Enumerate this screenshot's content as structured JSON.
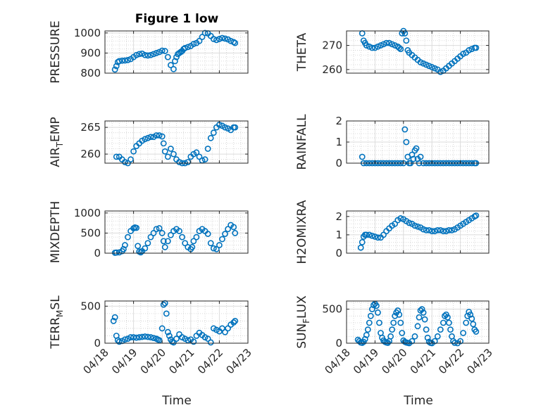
{
  "title": "Figure 1 low",
  "colors": {
    "marker": "#0072BD",
    "axis": "#262626",
    "grid": "#dcdcdc"
  },
  "xlabel": "Time",
  "x_ticks": [
    "04/18",
    "04/19",
    "04/20",
    "04/21",
    "04/22",
    "04/23"
  ],
  "chart_data": [
    {
      "type": "scatter",
      "ylabel": "PRESSURE",
      "yticks": [
        800,
        900,
        1000
      ],
      "ylim": [
        800,
        1010
      ],
      "xlim": [
        0,
        5
      ],
      "show_xticklabels": false,
      "x": [
        0.35,
        0.4,
        0.45,
        0.5,
        0.6,
        0.7,
        0.8,
        0.9,
        1.0,
        1.1,
        1.2,
        1.3,
        1.4,
        1.5,
        1.6,
        1.7,
        1.8,
        1.9,
        2.0,
        2.1,
        2.2,
        2.3,
        2.4,
        2.45,
        2.5,
        2.55,
        2.6,
        2.65,
        2.7,
        2.75,
        2.8,
        2.9,
        3.0,
        3.1,
        3.2,
        3.3,
        3.4,
        3.5,
        3.6,
        3.7,
        3.8,
        3.9,
        4.0,
        4.1,
        4.2,
        4.3,
        4.4,
        4.5,
        4.55
      ],
      "y": [
        818,
        835,
        855,
        860,
        862,
        863,
        865,
        870,
        880,
        890,
        895,
        897,
        890,
        888,
        890,
        895,
        900,
        905,
        912,
        910,
        880,
        840,
        820,
        860,
        880,
        895,
        900,
        905,
        910,
        920,
        925,
        930,
        935,
        945,
        950,
        960,
        980,
        1000,
        998,
        985,
        970,
        965,
        970,
        975,
        972,
        968,
        960,
        955,
        950
      ]
    },
    {
      "type": "scatter",
      "ylabel": "THETA",
      "yticks": [
        260,
        270
      ],
      "ylim": [
        258.5,
        276
      ],
      "xlim": [
        0,
        5
      ],
      "show_xticklabels": false,
      "x": [
        0.55,
        0.6,
        0.65,
        0.7,
        0.8,
        0.9,
        1.0,
        1.1,
        1.2,
        1.3,
        1.4,
        1.5,
        1.6,
        1.7,
        1.8,
        1.85,
        1.9,
        1.95,
        2.0,
        2.05,
        2.1,
        2.15,
        2.2,
        2.3,
        2.4,
        2.5,
        2.6,
        2.7,
        2.8,
        2.9,
        3.0,
        3.1,
        3.2,
        3.3,
        3.4,
        3.5,
        3.6,
        3.7,
        3.8,
        3.9,
        4.0,
        4.1,
        4.2,
        4.3,
        4.4,
        4.5,
        4.55
      ],
      "y": [
        275,
        272,
        271,
        270,
        269.5,
        269,
        269,
        269.5,
        270,
        270.5,
        271,
        271,
        270.5,
        270,
        269.5,
        269,
        268.5,
        275,
        276,
        275,
        272,
        268,
        267,
        266,
        265,
        264,
        263,
        262.5,
        262,
        261.5,
        261,
        260.5,
        260,
        259,
        259.5,
        260.5,
        261.5,
        262.5,
        263.5,
        264.5,
        265.5,
        266.5,
        267,
        268,
        268.5,
        269,
        269
      ]
    },
    {
      "type": "scatter",
      "ylabel": "AIR_TEMP",
      "yticks": [
        260,
        265
      ],
      "ylim": [
        258.3,
        266.2
      ],
      "xlim": [
        0,
        5
      ],
      "show_xticklabels": false,
      "x": [
        0.4,
        0.5,
        0.6,
        0.7,
        0.8,
        0.9,
        1.0,
        1.1,
        1.2,
        1.3,
        1.4,
        1.5,
        1.6,
        1.7,
        1.8,
        1.9,
        2.0,
        2.05,
        2.1,
        2.2,
        2.3,
        2.4,
        2.5,
        2.6,
        2.7,
        2.8,
        2.9,
        3.0,
        3.1,
        3.2,
        3.3,
        3.4,
        3.5,
        3.6,
        3.7,
        3.8,
        3.9,
        4.0,
        4.1,
        4.2,
        4.3,
        4.4,
        4.5,
        4.55
      ],
      "y": [
        259.5,
        259.5,
        259,
        258.5,
        258.3,
        259,
        260.5,
        261.5,
        262,
        262.5,
        262.8,
        263,
        263.2,
        263.2,
        263.5,
        263.5,
        263.3,
        262,
        260.5,
        259.5,
        261,
        260,
        259,
        258.5,
        258.3,
        258.3,
        258.5,
        259.5,
        260,
        260.3,
        259.5,
        258.8,
        259,
        261,
        263,
        264,
        265,
        265.5,
        265.3,
        265,
        264.8,
        264.5,
        265,
        265
      ]
    },
    {
      "type": "scatter",
      "ylabel": "RAINFALL",
      "yticks": [
        0,
        1,
        2
      ],
      "ylim": [
        0,
        2
      ],
      "xlim": [
        0,
        5
      ],
      "show_xticklabels": false,
      "x": [
        0.55,
        0.6,
        0.7,
        0.8,
        0.9,
        1.0,
        1.1,
        1.2,
        1.3,
        1.4,
        1.5,
        1.6,
        1.7,
        1.8,
        1.9,
        2.0,
        2.05,
        2.1,
        2.15,
        2.2,
        2.25,
        2.3,
        2.35,
        2.4,
        2.45,
        2.5,
        2.55,
        2.6,
        2.7,
        2.8,
        2.9,
        3.0,
        3.1,
        3.2,
        3.3,
        3.4,
        3.5,
        3.6,
        3.7,
        3.8,
        3.9,
        4.0,
        4.1,
        4.2,
        4.3,
        4.4,
        4.5,
        4.55
      ],
      "y": [
        0.3,
        0,
        0,
        0,
        0,
        0,
        0,
        0,
        0,
        0,
        0,
        0,
        0,
        0,
        0,
        0,
        1.6,
        1.0,
        0.3,
        0,
        0,
        0.4,
        0.2,
        0.6,
        0.7,
        0.2,
        0,
        0.3,
        0,
        0,
        0,
        0,
        0,
        0,
        0,
        0,
        0,
        0,
        0,
        0,
        0,
        0,
        0,
        0,
        0,
        0,
        0,
        0
      ]
    },
    {
      "type": "scatter",
      "ylabel": "MIXDEPTH",
      "yticks": [
        0,
        500,
        1000
      ],
      "ylim": [
        0,
        1050
      ],
      "xlim": [
        0,
        5
      ],
      "show_xticklabels": false,
      "x": [
        0.35,
        0.4,
        0.5,
        0.6,
        0.65,
        0.7,
        0.8,
        0.9,
        1.0,
        1.05,
        1.1,
        1.15,
        1.2,
        1.25,
        1.3,
        1.4,
        1.5,
        1.6,
        1.7,
        1.8,
        1.9,
        2.0,
        2.05,
        2.1,
        2.2,
        2.3,
        2.4,
        2.5,
        2.6,
        2.7,
        2.8,
        2.9,
        3.0,
        3.05,
        3.1,
        3.2,
        3.3,
        3.4,
        3.5,
        3.6,
        3.7,
        3.8,
        3.9,
        4.0,
        4.1,
        4.2,
        4.3,
        4.4,
        4.5,
        4.55
      ],
      "y": [
        10,
        15,
        20,
        50,
        100,
        200,
        400,
        550,
        620,
        640,
        630,
        180,
        40,
        20,
        50,
        120,
        250,
        400,
        500,
        600,
        620,
        500,
        300,
        150,
        300,
        450,
        550,
        600,
        550,
        400,
        250,
        150,
        100,
        150,
        300,
        400,
        550,
        600,
        550,
        480,
        250,
        120,
        100,
        200,
        350,
        480,
        600,
        700,
        650,
        500
      ]
    },
    {
      "type": "scatter",
      "ylabel": "H2OMIXRA",
      "yticks": [
        0,
        1,
        2
      ],
      "ylim": [
        0,
        2.3
      ],
      "xlim": [
        0,
        5
      ],
      "show_xticklabels": false,
      "x": [
        0.5,
        0.55,
        0.6,
        0.65,
        0.7,
        0.8,
        0.9,
        1.0,
        1.1,
        1.2,
        1.3,
        1.4,
        1.5,
        1.6,
        1.7,
        1.8,
        1.9,
        2.0,
        2.1,
        2.2,
        2.3,
        2.4,
        2.5,
        2.6,
        2.7,
        2.8,
        2.9,
        3.0,
        3.1,
        3.2,
        3.3,
        3.4,
        3.5,
        3.6,
        3.7,
        3.8,
        3.9,
        4.0,
        4.1,
        4.2,
        4.3,
        4.4,
        4.5,
        4.55
      ],
      "y": [
        0.3,
        0.6,
        0.9,
        1.0,
        1.0,
        1.0,
        0.95,
        0.9,
        0.85,
        0.85,
        1.0,
        1.2,
        1.35,
        1.5,
        1.6,
        1.8,
        1.9,
        1.85,
        1.75,
        1.65,
        1.6,
        1.5,
        1.45,
        1.4,
        1.3,
        1.25,
        1.25,
        1.2,
        1.2,
        1.25,
        1.25,
        1.2,
        1.2,
        1.25,
        1.25,
        1.3,
        1.4,
        1.5,
        1.6,
        1.7,
        1.8,
        1.9,
        2.0,
        2.05
      ]
    },
    {
      "type": "scatter",
      "ylabel": "TERR_MSL",
      "yticks": [
        0,
        500
      ],
      "ylim": [
        0,
        570
      ],
      "xlim": [
        0,
        5
      ],
      "show_xticklabels": false,
      "x": [
        0.3,
        0.35,
        0.4,
        0.45,
        0.5,
        0.6,
        0.7,
        0.8,
        0.9,
        1.0,
        1.1,
        1.2,
        1.3,
        1.4,
        1.5,
        1.6,
        1.7,
        1.8,
        1.85,
        1.9,
        2.0,
        2.05,
        2.1,
        2.15,
        2.2,
        2.25,
        2.3,
        2.35,
        2.4,
        2.5,
        2.6,
        2.7,
        2.8,
        2.9,
        3.0,
        3.1,
        3.2,
        3.3,
        3.4,
        3.5,
        3.6,
        3.7,
        3.8,
        3.9,
        4.0,
        4.1,
        4.2,
        4.3,
        4.4,
        4.5,
        4.55
      ],
      "y": [
        300,
        350,
        100,
        40,
        20,
        30,
        50,
        60,
        80,
        80,
        75,
        80,
        85,
        90,
        85,
        80,
        70,
        60,
        50,
        40,
        200,
        520,
        540,
        400,
        150,
        100,
        50,
        20,
        10,
        60,
        120,
        80,
        60,
        40,
        50,
        20,
        100,
        140,
        110,
        80,
        60,
        10,
        200,
        180,
        160,
        200,
        150,
        200,
        250,
        280,
        300
      ]
    },
    {
      "type": "scatter",
      "ylabel": "SUN_FLUX",
      "yticks": [
        0,
        500
      ],
      "ylim": [
        0,
        620
      ],
      "xlim": [
        0,
        5
      ],
      "show_xticklabels": true,
      "x": [
        0.4,
        0.45,
        0.5,
        0.55,
        0.6,
        0.65,
        0.7,
        0.75,
        0.8,
        0.85,
        0.9,
        0.95,
        1.0,
        1.05,
        1.1,
        1.15,
        1.2,
        1.25,
        1.3,
        1.35,
        1.4,
        1.45,
        1.5,
        1.55,
        1.6,
        1.65,
        1.7,
        1.75,
        1.8,
        1.85,
        1.9,
        1.95,
        2.0,
        2.05,
        2.1,
        2.15,
        2.2,
        2.3,
        2.4,
        2.5,
        2.55,
        2.6,
        2.65,
        2.7,
        2.75,
        2.8,
        2.85,
        2.9,
        2.95,
        3.0,
        3.1,
        3.2,
        3.3,
        3.4,
        3.45,
        3.5,
        3.55,
        3.6,
        3.65,
        3.7,
        3.75,
        3.8,
        3.9,
        4.0,
        4.1,
        4.2,
        4.25,
        4.3,
        4.35,
        4.4,
        4.45,
        4.5,
        4.55
      ],
      "y": [
        50,
        30,
        10,
        5,
        20,
        60,
        120,
        200,
        300,
        400,
        500,
        560,
        580,
        550,
        450,
        300,
        150,
        80,
        40,
        20,
        10,
        5,
        30,
        100,
        200,
        300,
        400,
        450,
        480,
        420,
        300,
        150,
        40,
        20,
        10,
        5,
        0,
        30,
        100,
        250,
        380,
        480,
        500,
        450,
        350,
        200,
        80,
        20,
        5,
        0,
        30,
        100,
        200,
        300,
        400,
        420,
        380,
        300,
        200,
        100,
        30,
        5,
        0,
        30,
        150,
        300,
        400,
        460,
        420,
        360,
        280,
        200,
        170
      ]
    }
  ]
}
